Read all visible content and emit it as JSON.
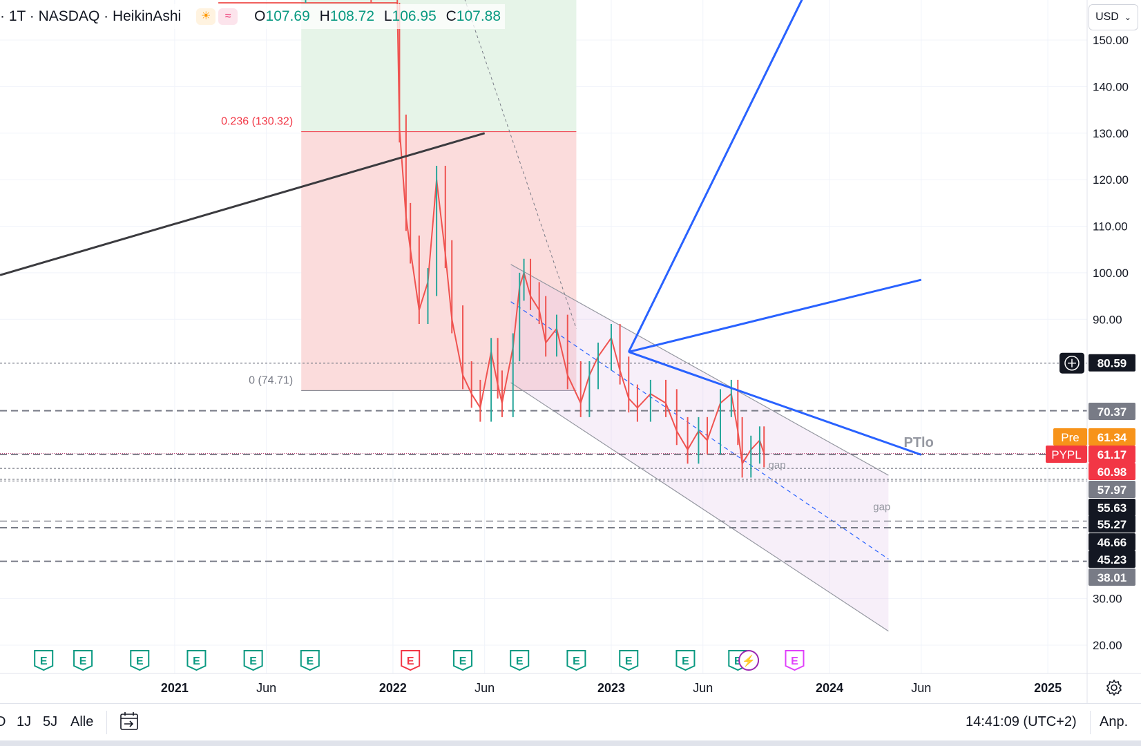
{
  "header": {
    "symbol_line": "· 1T · NASDAQ · HeikinAshi",
    "icons": [
      "sun-icon",
      "wave-icon"
    ],
    "ohlc": [
      {
        "key": "O",
        "value": "107.69"
      },
      {
        "key": "H",
        "value": "108.72"
      },
      {
        "key": "L",
        "value": "106.95"
      },
      {
        "key": "C",
        "value": "107.88"
      }
    ],
    "currency": "USD"
  },
  "chart_data": {
    "type": "line",
    "title": "",
    "symbol": "PYPL",
    "price_scale": {
      "ylim": [
        12,
        158
      ],
      "ticks": [
        "150.00",
        "140.00",
        "130.00",
        "120.00",
        "110.00",
        "100.00",
        "90.00",
        "30.00",
        "20.00"
      ]
    },
    "time_axis": {
      "labels": [
        "2021",
        "Jun",
        "2022",
        "Jun",
        "2023",
        "Jun",
        "2024",
        "Jun",
        "2025"
      ],
      "label_dates": [
        2021.0,
        2021.42,
        2022.0,
        2022.42,
        2023.0,
        2023.42,
        2024.0,
        2024.42,
        2025.0
      ]
    },
    "series": [
      {
        "x": [
          2021.2,
          2021.6,
          2021.9,
          2022.02,
          2022.03,
          2022.06,
          2022.08,
          2022.12,
          2022.16,
          2022.2,
          2022.24,
          2022.27,
          2022.32,
          2022.36,
          2022.4,
          2022.45,
          2022.48,
          2022.5,
          2022.55,
          2022.58,
          2022.6,
          2022.63,
          2022.67,
          2022.7,
          2022.75,
          2022.8,
          2022.86,
          2022.9,
          2022.94,
          2023.0,
          2023.04,
          2023.08,
          2023.12,
          2023.18,
          2023.25,
          2023.3,
          2023.35,
          2023.4,
          2023.44,
          2023.5,
          2023.55,
          2023.58,
          2023.6,
          2023.64,
          2023.68,
          2023.7
        ],
        "close": [
          205,
          260,
          240,
          190,
          131,
          112,
          105,
          92,
          98,
          120,
          104,
          90,
          78,
          74,
          71,
          83,
          76,
          72,
          84,
          97,
          100,
          95,
          92,
          85,
          88,
          78,
          72,
          78,
          82,
          86,
          79,
          73,
          71,
          74,
          72,
          66,
          62,
          66,
          64,
          72,
          74,
          66,
          59,
          62,
          64,
          61.2
        ]
      }
    ],
    "horizontal_levels": [
      80.59,
      70.37,
      60.98,
      57.97,
      55.63,
      55.27,
      46.66,
      45.23,
      38.01
    ],
    "price_labels": [
      {
        "text": "80.59",
        "value": 80.59,
        "color": "#131722"
      },
      {
        "text": "70.37",
        "value": 70.37,
        "color": "#787b86"
      },
      {
        "text": "61.34",
        "value": 61.34,
        "color": "#f7931a",
        "tag": "Pre"
      },
      {
        "text": "61.17",
        "value": 61.17,
        "color": "#f23645",
        "tag": "PYPL"
      },
      {
        "text": "60.98",
        "value": 60.98,
        "color": "#f23645"
      },
      {
        "text": "57.97",
        "value": 57.97,
        "color": "#787b86"
      },
      {
        "text": "55.63",
        "value": 55.63,
        "color": "#131722"
      },
      {
        "text": "55.27",
        "value": 55.27,
        "color": "#131722"
      },
      {
        "text": "46.66",
        "value": 46.66,
        "color": "#131722"
      },
      {
        "text": "45.23",
        "value": 45.23,
        "color": "#131722"
      },
      {
        "text": "38.01",
        "value": 38.01,
        "color": "#787b86"
      }
    ],
    "fib": {
      "levels": [
        {
          "label": "0.236 (130.32)",
          "value": 130.32
        },
        {
          "label": "0 (74.71)",
          "value": 74.71
        }
      ],
      "x_range": [
        2021.58,
        2022.84
      ]
    },
    "drawings": {
      "trend_black": [
        [
          2020.2,
          99.5
        ],
        [
          2022.42,
          130
        ]
      ],
      "channel_upper": [
        [
          2022.54,
          101.8
        ],
        [
          2024.27,
          56.5
        ]
      ],
      "channel_mid": [
        [
          2022.54,
          93.8
        ],
        [
          2024.27,
          38.5
        ]
      ],
      "channel_lower": [
        [
          2022.54,
          76.4
        ],
        [
          2024.27,
          23
        ]
      ],
      "blue_ray_a": [
        [
          2023.08,
          83
        ],
        [
          2023.94,
          165
        ]
      ],
      "blue_ray_b": [
        [
          2023.08,
          83
        ],
        [
          2024.42,
          98.5
        ]
      ],
      "blue_line_c": [
        [
          2023.08,
          83
        ],
        [
          2024.42,
          60.9
        ]
      ],
      "fib_diag_dashed": [
        [
          2022.32,
          160
        ],
        [
          2022.84,
          88
        ]
      ]
    },
    "annotations": [
      {
        "text": "PTlo",
        "x": 2024.34,
        "y": 62.6
      },
      {
        "text": "gap",
        "x": 2023.72,
        "y": 58
      },
      {
        "text": "gap",
        "x": 2024.2,
        "y": 49
      }
    ],
    "earnings_markers": [
      {
        "x": 2020.4,
        "type": "E"
      },
      {
        "x": 2020.58,
        "type": "E"
      },
      {
        "x": 2020.84,
        "type": "E"
      },
      {
        "x": 2021.1,
        "type": "E"
      },
      {
        "x": 2021.36,
        "type": "E"
      },
      {
        "x": 2021.62,
        "type": "E"
      },
      {
        "x": 2022.08,
        "type": "E",
        "negative": true
      },
      {
        "x": 2022.32,
        "type": "E"
      },
      {
        "x": 2022.58,
        "type": "E"
      },
      {
        "x": 2022.84,
        "type": "E"
      },
      {
        "x": 2023.08,
        "type": "E"
      },
      {
        "x": 2023.34,
        "type": "E"
      },
      {
        "x": 2023.58,
        "type": "E"
      },
      {
        "x": 2023.63,
        "type": "lightning"
      },
      {
        "x": 2023.84,
        "type": "E",
        "future": true
      }
    ],
    "x_data_min": 2020.2,
    "x_data_max": 2025.18
  },
  "bottombar": {
    "ranges": [
      "D",
      "1J",
      "5J",
      "Alle"
    ],
    "time": "14:41:09 (UTC+2)",
    "adjust": "Anp."
  }
}
